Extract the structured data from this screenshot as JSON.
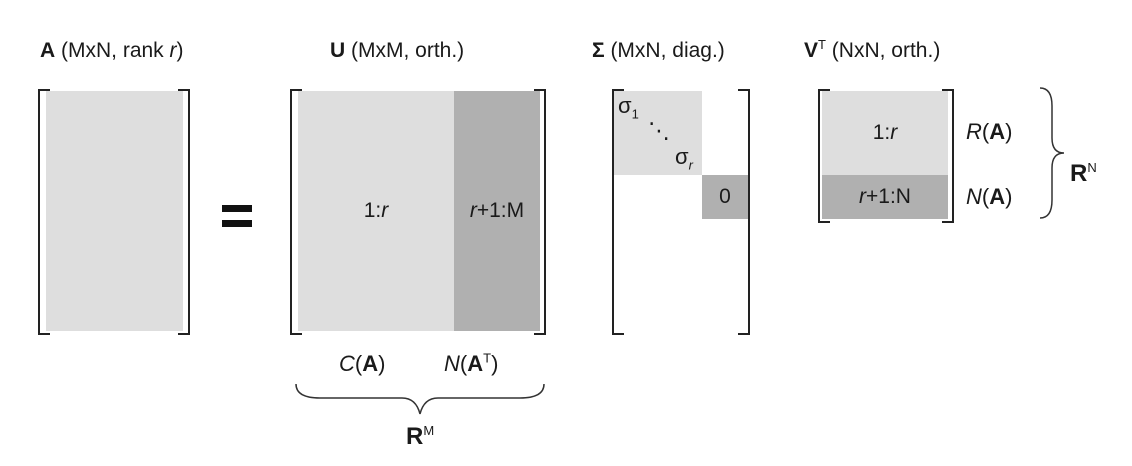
{
  "matrix_a": {
    "title_sym": "A",
    "title_rest_1": " (MxN, rank ",
    "title_rank": "r",
    "title_rest_2": ")"
  },
  "equals": "=",
  "matrix_u": {
    "title_sym": "U",
    "title_rest": " (MxM, orth.)",
    "block_left_pre": "1:",
    "block_left_var": "r",
    "block_right_var": "r",
    "block_right_post": "+1:M",
    "label_col_space_fn": "C",
    "label_col_space_arg": "A",
    "label_left_null_fn": "N",
    "label_left_null_arg": "A",
    "label_left_null_sup": "T",
    "space_sym": "R",
    "space_sup": "M"
  },
  "matrix_sigma": {
    "title_sym": "Σ",
    "title_rest": " (MxN, diag.)",
    "sigma_first": "σ",
    "sigma_first_sub": "1",
    "dots": "⋱",
    "sigma_last": "σ",
    "sigma_last_sub": "r",
    "zero_block": "0"
  },
  "matrix_vt": {
    "title_sym": "V",
    "title_sup": "T",
    "title_rest": " (NxN, orth.)",
    "block_top_pre": "1:",
    "block_top_var": "r",
    "block_bottom_var": "r",
    "block_bottom_post": "+1:N",
    "label_row_space_fn": "R",
    "label_row_space_arg": "A",
    "label_null_fn": "N",
    "label_null_arg": "A",
    "space_sym": "R",
    "space_sup": "N"
  }
}
